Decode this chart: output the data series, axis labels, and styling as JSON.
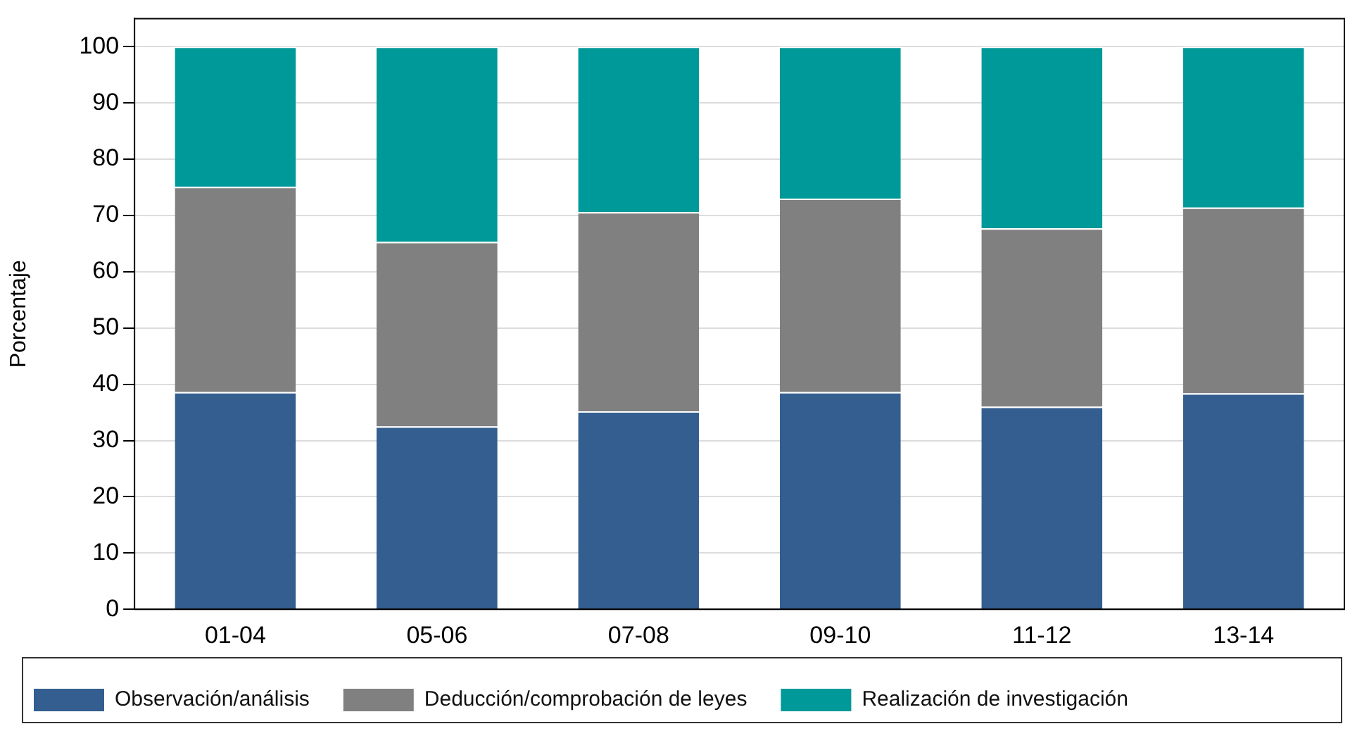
{
  "chart_data": {
    "type": "bar",
    "stacked": true,
    "ylabel": "Porcentaje",
    "categories": [
      "01-04",
      "05-06",
      "07-08",
      "09-10",
      "11-12",
      "13-14"
    ],
    "series": [
      {
        "name": "Observación/análisis",
        "color": "#335e8f",
        "values": [
          38.6,
          32.5,
          35.2,
          38.6,
          36.0,
          38.4
        ]
      },
      {
        "name": "Deducción/comprobación de leyes",
        "color": "#808080",
        "values": [
          36.5,
          32.8,
          35.4,
          34.4,
          31.7,
          33.0
        ]
      },
      {
        "name": "Realización de investigación",
        "color": "#009999",
        "values": [
          24.9,
          34.7,
          29.4,
          27.0,
          32.3,
          28.6
        ]
      }
    ],
    "ylim": [
      0,
      105
    ],
    "yticks": [
      0,
      10,
      20,
      30,
      40,
      50,
      60,
      70,
      80,
      90,
      100
    ],
    "grid": "y",
    "legend": "bottom"
  }
}
